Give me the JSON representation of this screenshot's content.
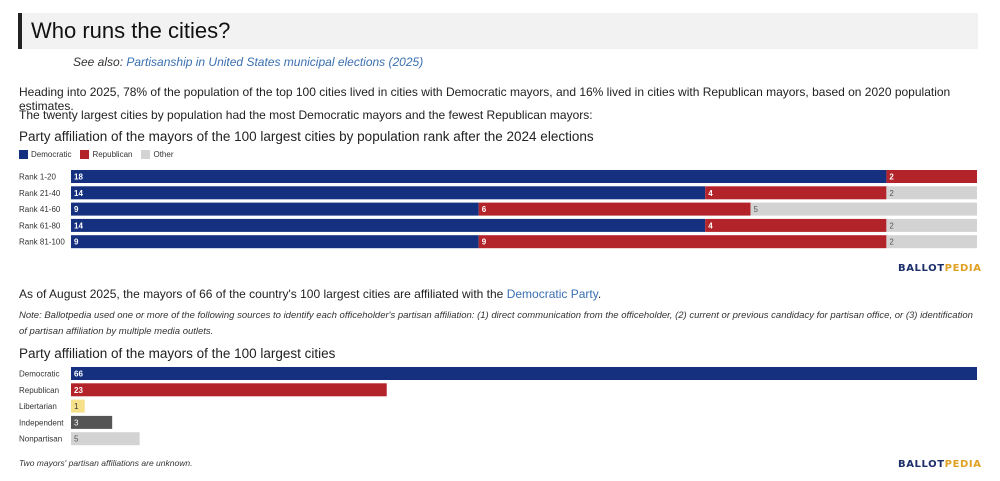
{
  "section_title": "Who runs the cities?",
  "see_also": {
    "prefix": "See also: ",
    "link": "Partisanship in United States municipal elections (2025)"
  },
  "intro_paragraph": "Heading into 2025, 78% of the population of the top 100 cities lived in cities with Democratic mayors, and 16% lived in cities with Republican mayors, based on 2020 population estimates.",
  "largest_paragraph": "The twenty largest cities by population had the most Democratic mayors and the fewest Republican mayors:",
  "colors": {
    "democratic": "#14307f",
    "republican": "#b3232a",
    "other": "#d3d3d3",
    "libertarian": "#f7e08a",
    "independent": "#555555",
    "nonpartisan": "#d3d3d3"
  },
  "chart_data": [
    {
      "type": "bar",
      "orientation": "horizontal",
      "stacked": true,
      "title": "Party affiliation of the mayors of the 100 largest cities by population rank after the 2024 elections",
      "legend": [
        "Democratic",
        "Republican",
        "Other"
      ],
      "legend_placement": "top-left",
      "categories": [
        "Rank 1-20",
        "Rank 21-40",
        "Rank 41-60",
        "Rank 61-80",
        "Rank 81-100"
      ],
      "series": [
        {
          "name": "Democratic",
          "values": [
            18,
            14,
            9,
            14,
            9
          ]
        },
        {
          "name": "Republican",
          "values": [
            2,
            4,
            6,
            4,
            9
          ]
        },
        {
          "name": "Other",
          "values": [
            0,
            2,
            5,
            2,
            2
          ]
        }
      ],
      "xlim": [
        0,
        20
      ],
      "grid": false
    },
    {
      "type": "bar",
      "orientation": "horizontal",
      "title": "Party affiliation of the mayors of the 100 largest cities",
      "categories": [
        "Democratic",
        "Republican",
        "Libertarian",
        "Independent",
        "Nonpartisan"
      ],
      "values": [
        66,
        23,
        1,
        3,
        5
      ],
      "xlim": [
        0,
        66
      ],
      "grid": false
    }
  ],
  "mid_paragraph": {
    "text": "As of August 2025, the mayors of 66 of the country's 100 largest cities are affiliated with the ",
    "link": "Democratic Party",
    "suffix": "."
  },
  "note": "Note: Ballotpedia used one or more of the following sources to identify each officeholder's partisan affiliation: (1) direct communication from the officeholder, (2) current or previous candidacy for partisan office, or (3) identification of partisan affiliation by multiple media outlets.",
  "footnote": "Two mayors' partisan affiliations are unknown.",
  "brand": {
    "part1": "BALLOT",
    "part2": "PEDIA"
  }
}
